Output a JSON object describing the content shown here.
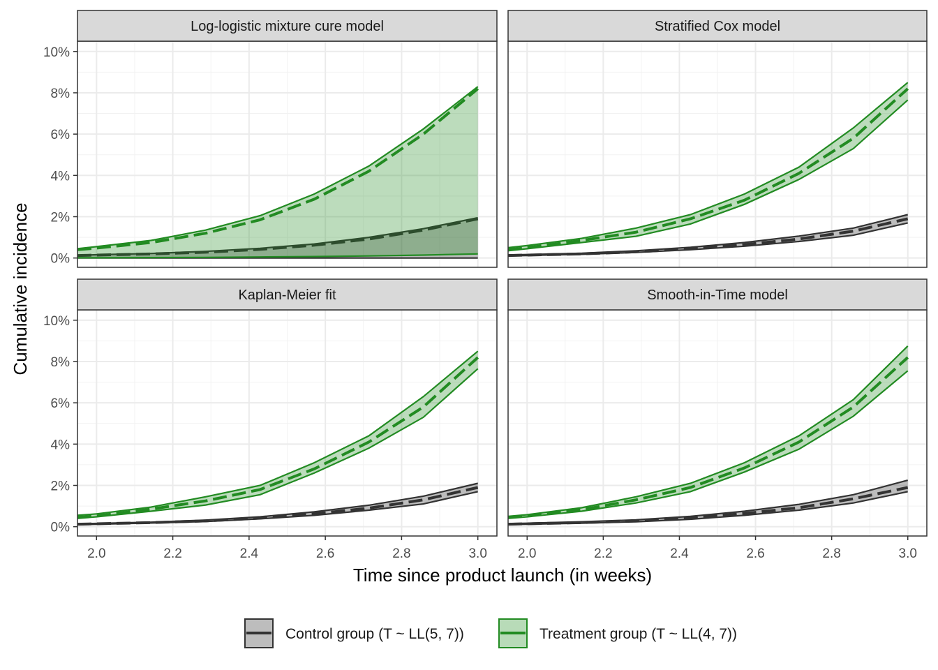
{
  "chart_data": {
    "type": "line",
    "xlabel": "Time since product launch (in weeks)",
    "ylabel": "Cumulative incidence",
    "xlim": [
      1.95,
      3.05
    ],
    "ylim": [
      -0.45,
      10.5
    ],
    "x_ticks": [
      2.0,
      2.2,
      2.4,
      2.6,
      2.8,
      3.0
    ],
    "x_tick_labels": [
      "2.0",
      "2.2",
      "2.4",
      "2.6",
      "2.8",
      "3.0"
    ],
    "y_ticks": [
      0,
      2,
      4,
      6,
      8,
      10
    ],
    "y_tick_labels": [
      "0%",
      "2%",
      "4%",
      "6%",
      "8%",
      "10%"
    ],
    "grid": true,
    "legend_position": "bottom",
    "colors": {
      "control": "#333333",
      "treatment": "#228B22"
    },
    "legend": [
      {
        "key": "control",
        "label": "Control group (T ~ LL(5, 7))"
      },
      {
        "key": "treatment",
        "label": "Treatment group (T ~ LL(4, 7))"
      }
    ],
    "x": [
      1.95,
      2.0,
      2.143,
      2.286,
      2.429,
      2.571,
      2.714,
      2.857,
      3.0
    ],
    "panels": [
      {
        "title": "Log-logistic mixture cure model",
        "series": [
          {
            "group": "control",
            "estimate": [
              0.12,
              0.14,
              0.2,
              0.28,
              0.42,
              0.62,
              0.92,
              1.35,
              1.9
            ],
            "lower": [
              0.0,
              0.0,
              0.0,
              0.0,
              0.0,
              0.0,
              0.0,
              0.0,
              0.0
            ],
            "upper": [
              0.13,
              0.16,
              0.22,
              0.32,
              0.47,
              0.68,
              1.0,
              1.42,
              1.95
            ]
          },
          {
            "group": "treatment",
            "estimate": [
              0.4,
              0.48,
              0.75,
              1.2,
              1.85,
              2.85,
              4.2,
              6.0,
              8.2
            ],
            "lower": [
              0.01,
              0.01,
              0.02,
              0.03,
              0.05,
              0.07,
              0.1,
              0.14,
              0.2
            ],
            "upper": [
              0.45,
              0.55,
              0.85,
              1.35,
              2.05,
              3.1,
              4.45,
              6.25,
              8.3
            ]
          }
        ]
      },
      {
        "title": "Stratified Cox model",
        "series": [
          {
            "group": "control",
            "estimate": [
              0.12,
              0.14,
              0.2,
              0.3,
              0.45,
              0.65,
              0.92,
              1.3,
              1.9
            ],
            "lower": [
              0.1,
              0.12,
              0.18,
              0.27,
              0.4,
              0.57,
              0.8,
              1.1,
              1.7
            ],
            "upper": [
              0.15,
              0.17,
              0.23,
              0.35,
              0.52,
              0.75,
              1.06,
              1.45,
              2.1
            ]
          },
          {
            "group": "treatment",
            "estimate": [
              0.4,
              0.5,
              0.85,
              1.25,
              1.9,
              2.8,
              4.1,
              5.8,
              8.2
            ],
            "lower": [
              0.35,
              0.45,
              0.75,
              1.05,
              1.65,
              2.6,
              3.8,
              5.3,
              7.65
            ],
            "upper": [
              0.5,
              0.6,
              0.95,
              1.45,
              2.1,
              3.1,
              4.4,
              6.3,
              8.5
            ]
          }
        ]
      },
      {
        "title": "Kaplan-Meier fit",
        "series": [
          {
            "group": "control",
            "estimate": [
              0.12,
              0.14,
              0.2,
              0.28,
              0.42,
              0.62,
              0.9,
              1.3,
              1.9
            ],
            "lower": [
              0.1,
              0.12,
              0.18,
              0.25,
              0.38,
              0.55,
              0.8,
              1.1,
              1.7
            ],
            "upper": [
              0.14,
              0.16,
              0.22,
              0.32,
              0.48,
              0.72,
              1.04,
              1.48,
              2.1
            ]
          },
          {
            "group": "treatment",
            "estimate": [
              0.45,
              0.52,
              0.85,
              1.25,
              1.8,
              2.8,
              4.1,
              5.8,
              8.2
            ],
            "lower": [
              0.4,
              0.48,
              0.75,
              1.05,
              1.55,
              2.6,
              3.8,
              5.3,
              7.65
            ],
            "upper": [
              0.55,
              0.62,
              0.95,
              1.45,
              2.0,
              3.1,
              4.4,
              6.3,
              8.5
            ]
          }
        ]
      },
      {
        "title": "Smooth-in-Time model",
        "series": [
          {
            "group": "control",
            "estimate": [
              0.12,
              0.14,
              0.2,
              0.28,
              0.42,
              0.64,
              0.92,
              1.35,
              1.9
            ],
            "lower": [
              0.1,
              0.12,
              0.17,
              0.24,
              0.36,
              0.55,
              0.8,
              1.15,
              1.7
            ],
            "upper": [
              0.15,
              0.17,
              0.24,
              0.33,
              0.5,
              0.75,
              1.08,
              1.55,
              2.25
            ]
          },
          {
            "group": "treatment",
            "estimate": [
              0.45,
              0.52,
              0.82,
              1.3,
              1.9,
              2.85,
              4.1,
              5.8,
              8.2
            ],
            "lower": [
              0.4,
              0.48,
              0.75,
              1.15,
              1.7,
              2.65,
              3.75,
              5.35,
              7.55
            ],
            "upper": [
              0.5,
              0.58,
              0.92,
              1.45,
              2.1,
              3.1,
              4.4,
              6.15,
              8.75
            ]
          }
        ]
      }
    ]
  }
}
